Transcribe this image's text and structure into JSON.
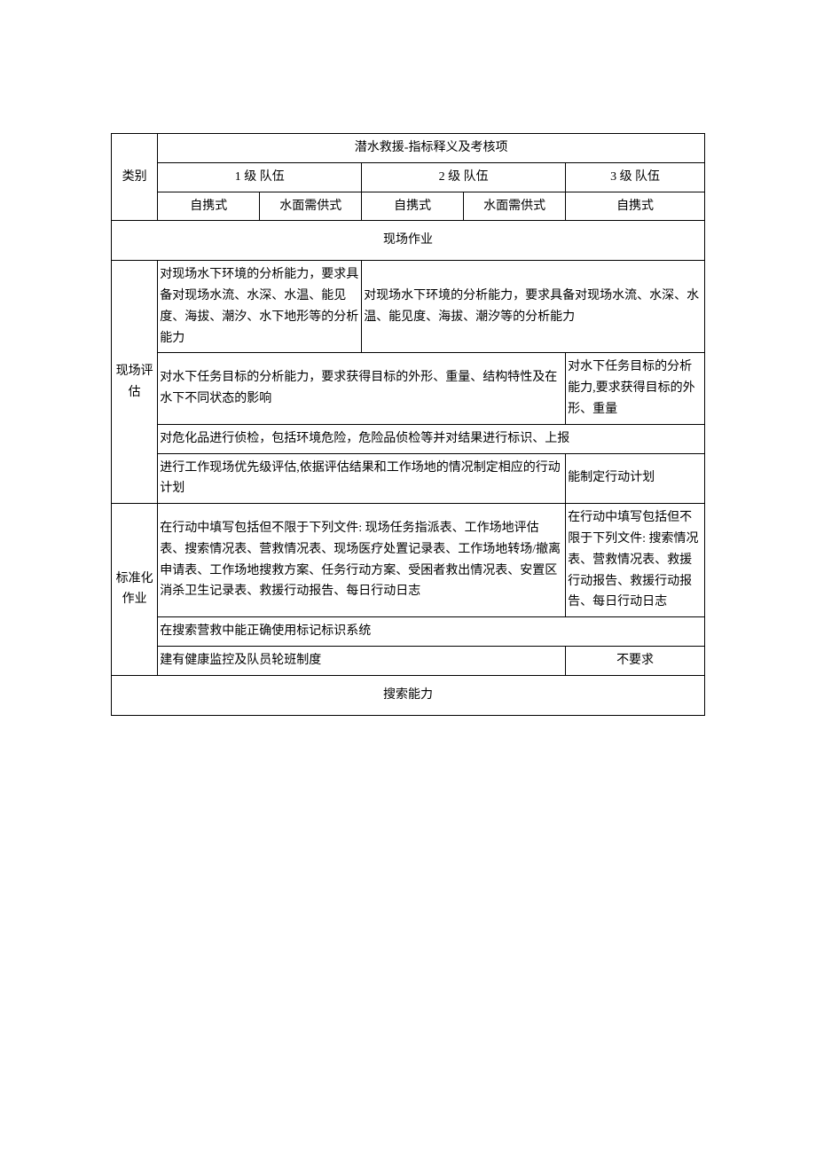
{
  "colors": {
    "border": "#000000",
    "background": "#ffffff",
    "text": "#000000"
  },
  "header": {
    "title": "潜水救援-指标释义及考核项",
    "category_label": "类别",
    "level1": "1 级 队伍",
    "level2": "2 级 队伍",
    "level3": "3 级 队伍",
    "sub_zixie": "自携式",
    "sub_shuimian": "水面需供式"
  },
  "sections": {
    "on_site": "现场作业",
    "search": "搜索能力"
  },
  "rows": {
    "assess_label": "现场评估",
    "standardize_label": "标准化作业",
    "r1_left": "对现场水下环境的分析能力，要求具备对现场水流、水深、水温、能见度、海拔、潮汐、水下地形等的分析能力",
    "r1_right": "对现场水下环境的分析能力，要求具备对现场水流、水深、水温、能见度、海拔、潮汐等的分析能力",
    "r2_left": "对水下任务目标的分析能力，要求获得目标的外形、重量、结构特性及在水下不同状态的影响",
    "r2_right": "对水下任务目标的分析能力,要求获得目标的外形、重量",
    "r3": "对危化品进行侦检，包括环境危险，危险品侦检等并对结果进行标识、上报",
    "r4_left": "进行工作现场优先级评估,依据评估结果和工作场地的情况制定相应的行动计划",
    "r4_right": "能制定行动计划",
    "r5_left": "在行动中填写包括但不限于下列文件: 现场任务指派表、工作场地评估表、搜索情况表、营救情况表、现场医疗处置记录表、工作场地转场/撤离申请表、工作场地搜救方案、任务行动方案、受困者救出情况表、安置区消杀卫生记录表、救援行动报告、每日行动日志",
    "r5_right": "在行动中填写包括但不限于下列文件: 搜索情况表、营救情况表、救援行动报告、救援行动报告、每日行动日志",
    "r6": "在搜索营救中能正确使用标记标识系统",
    "r7_left": "建有健康监控及队员轮班制度",
    "r7_right": "不要求"
  }
}
